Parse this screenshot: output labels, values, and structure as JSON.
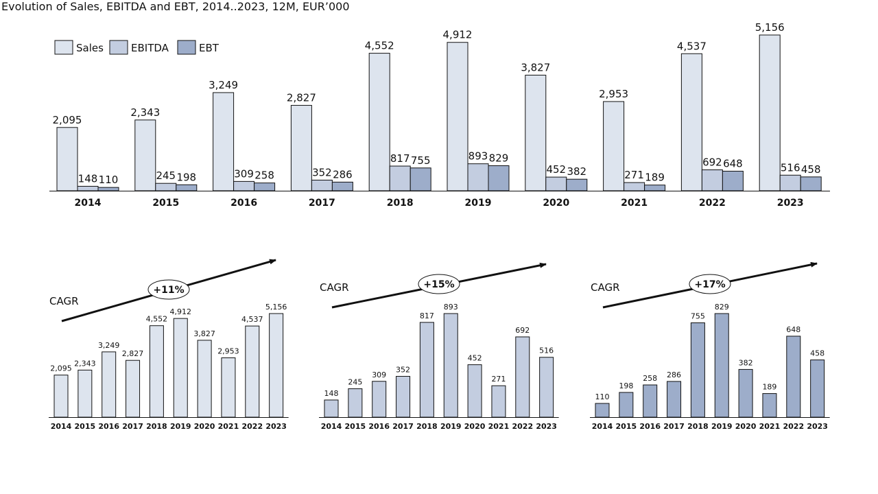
{
  "title": "Evolution of Sales, EBITDA and EBT, 2014..2023, 12M, EUR’000",
  "colors": {
    "sales": "#dde4ee",
    "ebitda": "#c3cde0",
    "ebt": "#9dadca",
    "outline": "#111111"
  },
  "chart_data": [
    {
      "type": "bar",
      "title": "",
      "categories": [
        "2014",
        "2015",
        "2016",
        "2017",
        "2018",
        "2019",
        "2020",
        "2021",
        "2022",
        "2023"
      ],
      "series": [
        {
          "name": "Sales",
          "values": [
            2095,
            2343,
            3249,
            2827,
            4552,
            4912,
            3827,
            2953,
            4537,
            5156
          ]
        },
        {
          "name": "EBITDA",
          "values": [
            148,
            245,
            309,
            352,
            817,
            893,
            452,
            271,
            692,
            516
          ]
        },
        {
          "name": "EBT",
          "values": [
            110,
            198,
            258,
            286,
            755,
            829,
            382,
            189,
            648,
            458
          ]
        }
      ],
      "legend": "top-left",
      "grid": false,
      "ylim": [
        0,
        5156
      ]
    },
    {
      "type": "bar",
      "series_name": "Sales",
      "categories": [
        "2014",
        "2015",
        "2016",
        "2017",
        "2018",
        "2019",
        "2020",
        "2021",
        "2022",
        "2023"
      ],
      "values": [
        2095,
        2343,
        3249,
        2827,
        4552,
        4912,
        3827,
        2953,
        4537,
        5156
      ],
      "label": "CAGR",
      "cagr": "+11%",
      "ylim": [
        0,
        5156
      ]
    },
    {
      "type": "bar",
      "series_name": "EBITDA",
      "categories": [
        "2014",
        "2015",
        "2016",
        "2017",
        "2018",
        "2019",
        "2020",
        "2021",
        "2022",
        "2023"
      ],
      "values": [
        148,
        245,
        309,
        352,
        817,
        893,
        452,
        271,
        692,
        516
      ],
      "label": "CAGR",
      "cagr": "+15%",
      "ylim": [
        0,
        893
      ]
    },
    {
      "type": "bar",
      "series_name": "EBT",
      "categories": [
        "2014",
        "2015",
        "2016",
        "2017",
        "2018",
        "2019",
        "2020",
        "2021",
        "2022",
        "2023"
      ],
      "values": [
        110,
        198,
        258,
        286,
        755,
        829,
        382,
        189,
        648,
        458
      ],
      "label": "CAGR",
      "cagr": "+17%",
      "ylim": [
        0,
        829
      ]
    }
  ]
}
